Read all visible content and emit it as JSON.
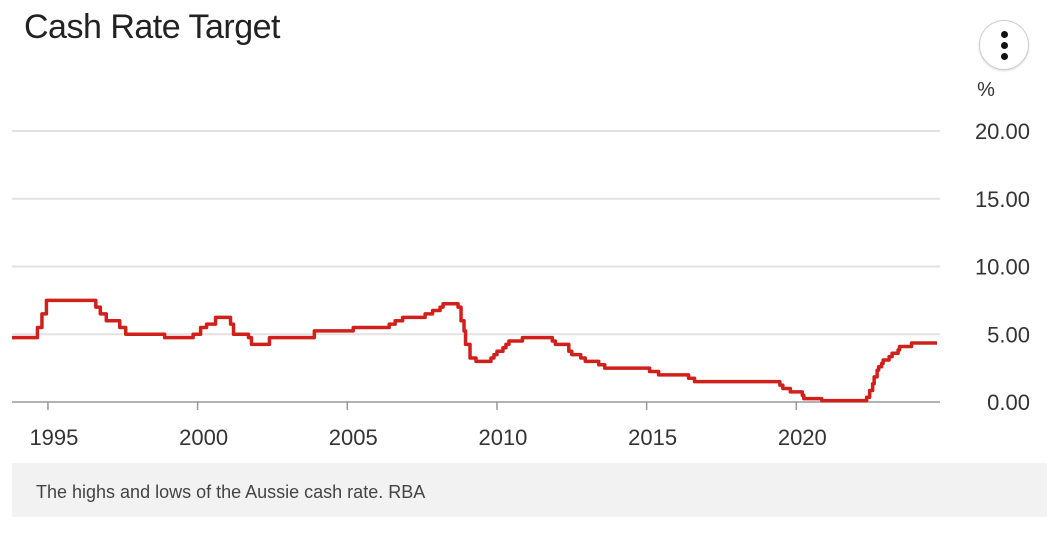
{
  "chart_data": {
    "type": "line",
    "title": "Cash Rate Target",
    "ylabel": "%",
    "xlabel": "",
    "xlim": [
      1993.8,
      2024.8
    ],
    "ylim": [
      0,
      20
    ],
    "x_ticks": [
      1995,
      2000,
      2005,
      2010,
      2015,
      2020
    ],
    "x_tick_labels": [
      "1995",
      "2000",
      "2005",
      "2010",
      "2015",
      "2020"
    ],
    "y_ticks": [
      0,
      5,
      10,
      15,
      20
    ],
    "y_tick_labels": [
      "0.00",
      "5.00",
      "10.00",
      "15.00",
      "20.00"
    ],
    "grid": true,
    "step": true,
    "series": [
      {
        "name": "Cash Rate Target",
        "color": "#d0201c",
        "x": [
          1993.8,
          1994.65,
          1994.8,
          1994.95,
          1996.6,
          1996.75,
          1996.95,
          1997.4,
          1997.6,
          1998.9,
          1999.85,
          2000.1,
          2000.3,
          2000.6,
          2001.1,
          2001.2,
          2001.7,
          2001.8,
          2002.4,
          2003.9,
          2005.2,
          2006.4,
          2006.6,
          2006.85,
          2007.6,
          2007.85,
          2008.1,
          2008.2,
          2008.7,
          2008.8,
          2008.9,
          2008.95,
          2009.1,
          2009.3,
          2009.8,
          2009.9,
          2010.0,
          2010.2,
          2010.3,
          2010.4,
          2010.85,
          2011.85,
          2011.95,
          2012.4,
          2012.5,
          2012.8,
          2012.95,
          2013.4,
          2013.6,
          2015.1,
          2015.4,
          2016.4,
          2016.6,
          2019.45,
          2019.55,
          2019.8,
          2020.2,
          2020.25,
          2020.85,
          2022.35,
          2022.45,
          2022.55,
          2022.6,
          2022.7,
          2022.75,
          2022.85,
          2022.9,
          2023.1,
          2023.2,
          2023.4,
          2023.45,
          2023.85,
          2024.7
        ],
        "y": [
          4.75,
          5.5,
          6.5,
          7.5,
          7.0,
          6.5,
          6.0,
          5.5,
          5.0,
          4.75,
          5.0,
          5.5,
          5.75,
          6.25,
          5.75,
          5.0,
          4.75,
          4.25,
          4.75,
          5.25,
          5.5,
          5.75,
          6.0,
          6.25,
          6.5,
          6.75,
          7.0,
          7.25,
          7.0,
          6.0,
          5.25,
          4.25,
          3.25,
          3.0,
          3.25,
          3.5,
          3.75,
          4.0,
          4.25,
          4.5,
          4.75,
          4.5,
          4.25,
          3.75,
          3.5,
          3.25,
          3.0,
          2.75,
          2.5,
          2.25,
          2.0,
          1.75,
          1.5,
          1.25,
          1.0,
          0.75,
          0.5,
          0.25,
          0.1,
          0.35,
          0.85,
          1.35,
          1.85,
          2.35,
          2.6,
          2.85,
          3.1,
          3.35,
          3.6,
          3.85,
          4.1,
          4.35,
          4.35
        ]
      }
    ]
  },
  "caption": "The highs and lows of the Aussie cash rate. RBA"
}
